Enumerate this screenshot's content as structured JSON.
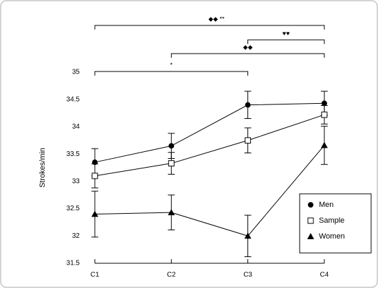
{
  "chart_data": {
    "type": "line",
    "y_label": "Strokes/min",
    "categories": [
      "C1",
      "C2",
      "C3",
      "C4"
    ],
    "ylim": [
      31.5,
      35
    ],
    "yticks": [
      31.5,
      32,
      32.5,
      33,
      33.5,
      34,
      34.5,
      35
    ],
    "series": [
      {
        "name": "Men",
        "color": "#000000",
        "marker": "circle",
        "values": [
          33.35,
          33.65,
          34.4,
          34.43
        ],
        "errors": [
          0.25,
          0.23,
          0.25,
          0.22
        ]
      },
      {
        "name": "Sample",
        "color": "#000000",
        "marker": "square",
        "values": [
          33.1,
          33.33,
          33.75,
          34.22
        ],
        "errors": [
          0.22,
          0.2,
          0.23,
          0.17
        ]
      },
      {
        "name": "Women",
        "color": "#000000",
        "marker": "triangle",
        "values": [
          32.4,
          32.43,
          32.0,
          33.66
        ],
        "errors": [
          0.42,
          0.32,
          0.38,
          0.35
        ]
      }
    ],
    "annotations": [
      {
        "label": "◆◆   **",
        "from": "C1",
        "to": "C4"
      },
      {
        "label": "♥♥",
        "from": "C3",
        "to": "C4"
      },
      {
        "label": "◆◆",
        "from": "C2",
        "to": "C4"
      },
      {
        "label": "*",
        "from": "C1",
        "to": "C3"
      }
    ],
    "legend": "lower right"
  }
}
